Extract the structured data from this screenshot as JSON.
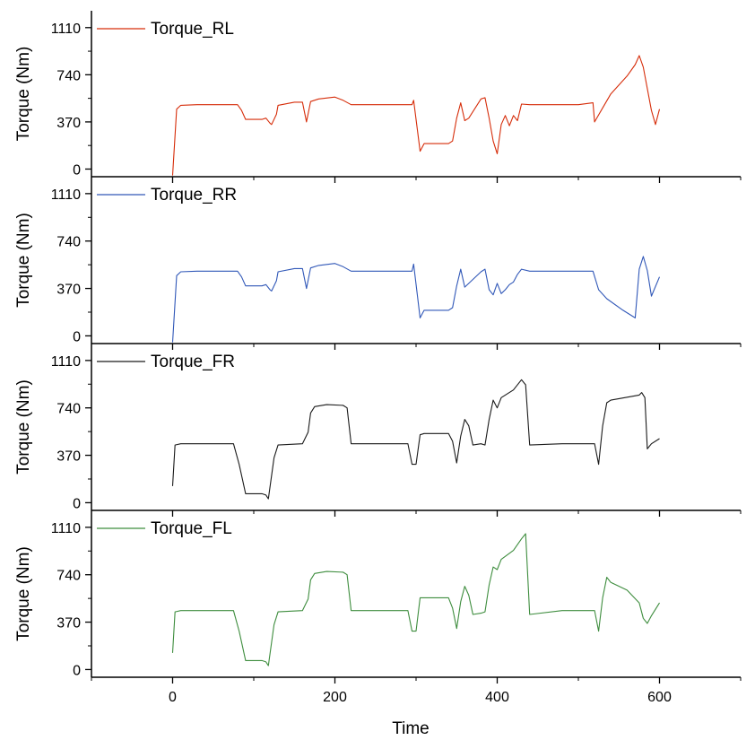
{
  "chart_data": {
    "type": "line",
    "layout": "stacked-panels-shared-x",
    "xlabel": "Time",
    "xlim": [
      -100,
      700
    ],
    "xticks": [
      0,
      200,
      400,
      600
    ],
    "xtick_labels": [
      "0",
      "200",
      "400",
      "600"
    ],
    "grid": false,
    "legend_position": "top-left",
    "panels": [
      {
        "ylabel": "Torque (Nm)",
        "ylim": [
          -60,
          1200
        ],
        "yticks": [
          0,
          370,
          740,
          1110
        ],
        "ytick_labels": [
          "0",
          "370",
          "740",
          "1110"
        ],
        "series": [
          {
            "name": "Torque_RL",
            "color": "#d62d0a",
            "x": [
              0,
              5,
              10,
              30,
              50,
              70,
              80,
              85,
              90,
              110,
              115,
              120,
              122,
              128,
              130,
              150,
              160,
              165,
              170,
              180,
              200,
              210,
              220,
              250,
              295,
              297,
              305,
              310,
              340,
              345,
              350,
              355,
              360,
              365,
              380,
              385,
              390,
              395,
              400,
              405,
              410,
              415,
              420,
              425,
              430,
              440,
              500,
              518,
              520,
              530,
              540,
              560,
              570,
              575,
              580,
              590,
              595,
              600
            ],
            "y": [
              -50,
              470,
              500,
              505,
              505,
              505,
              505,
              460,
              390,
              390,
              400,
              360,
              350,
              430,
              500,
              525,
              525,
              370,
              530,
              550,
              565,
              540,
              505,
              505,
              505,
              540,
              140,
              200,
              200,
              220,
              400,
              520,
              380,
              400,
              550,
              560,
              400,
              220,
              120,
              350,
              420,
              340,
              420,
              380,
              510,
              505,
              505,
              520,
              370,
              480,
              590,
              730,
              820,
              890,
              800,
              460,
              350,
              470
            ]
          }
        ]
      },
      {
        "ylabel": "Torque (Nm)",
        "ylim": [
          -60,
          1200
        ],
        "yticks": [
          0,
          370,
          740,
          1110
        ],
        "ytick_labels": [
          "0",
          "370",
          "740",
          "1110"
        ],
        "series": [
          {
            "name": "Torque_RR",
            "color": "#3158b8",
            "x": [
              0,
              5,
              10,
              30,
              50,
              70,
              80,
              85,
              90,
              110,
              115,
              120,
              122,
              128,
              130,
              150,
              160,
              165,
              170,
              180,
              200,
              210,
              220,
              250,
              295,
              297,
              305,
              310,
              340,
              345,
              350,
              355,
              360,
              365,
              380,
              385,
              390,
              395,
              400,
              405,
              410,
              415,
              420,
              425,
              430,
              440,
              500,
              518,
              525,
              535,
              555,
              570,
              575,
              580,
              585,
              590,
              600
            ],
            "y": [
              -50,
              470,
              500,
              505,
              505,
              505,
              505,
              460,
              390,
              390,
              400,
              360,
              350,
              430,
              500,
              525,
              525,
              370,
              530,
              550,
              565,
              540,
              505,
              505,
              505,
              560,
              140,
              200,
              200,
              220,
              390,
              520,
              380,
              410,
              500,
              520,
              360,
              320,
              410,
              330,
              360,
              400,
              420,
              480,
              520,
              505,
              505,
              505,
              360,
              290,
              200,
              140,
              520,
              620,
              510,
              310,
              460
            ]
          }
        ]
      },
      {
        "ylabel": "Torque (Nm)",
        "ylim": [
          -60,
          1200
        ],
        "yticks": [
          0,
          370,
          740,
          1110
        ],
        "ytick_labels": [
          "0",
          "370",
          "740",
          "1110"
        ],
        "series": [
          {
            "name": "Torque_FR",
            "color": "#1a1a1a",
            "x": [
              0,
              3,
              10,
              40,
              75,
              82,
              90,
              110,
              115,
              118,
              125,
              130,
              160,
              167,
              170,
              175,
              190,
              210,
              215,
              220,
              230,
              250,
              290,
              295,
              300,
              305,
              310,
              340,
              345,
              350,
              355,
              360,
              365,
              370,
              380,
              385,
              390,
              395,
              400,
              405,
              420,
              430,
              435,
              440,
              480,
              520,
              525,
              530,
              535,
              540,
              575,
              578,
              582,
              585,
              590,
              600
            ],
            "y": [
              130,
              450,
              460,
              460,
              460,
              300,
              70,
              70,
              60,
              30,
              350,
              450,
              460,
              550,
              700,
              750,
              765,
              760,
              740,
              460,
              460,
              460,
              460,
              300,
              300,
              530,
              540,
              540,
              480,
              310,
              520,
              650,
              600,
              450,
              460,
              450,
              650,
              800,
              740,
              820,
              880,
              960,
              920,
              450,
              460,
              460,
              300,
              600,
              780,
              800,
              840,
              860,
              820,
              420,
              460,
              500
            ]
          }
        ]
      },
      {
        "ylabel": "Torque (Nm)",
        "ylim": [
          -60,
          1200
        ],
        "yticks": [
          0,
          370,
          740,
          1110
        ],
        "ytick_labels": [
          "0",
          "370",
          "740",
          "1110"
        ],
        "series": [
          {
            "name": "Torque_FL",
            "color": "#3e8d3e",
            "x": [
              0,
              3,
              10,
              40,
              75,
              82,
              90,
              110,
              115,
              118,
              125,
              130,
              160,
              167,
              170,
              175,
              190,
              210,
              215,
              220,
              230,
              250,
              290,
              295,
              300,
              305,
              310,
              340,
              345,
              350,
              355,
              360,
              365,
              370,
              380,
              385,
              390,
              395,
              400,
              405,
              420,
              430,
              435,
              440,
              480,
              520,
              525,
              530,
              535,
              540,
              560,
              575,
              580,
              585,
              590,
              600
            ],
            "y": [
              130,
              450,
              460,
              460,
              460,
              300,
              70,
              70,
              60,
              30,
              350,
              450,
              460,
              550,
              700,
              750,
              765,
              760,
              740,
              460,
              460,
              460,
              460,
              300,
              300,
              560,
              560,
              560,
              480,
              320,
              530,
              650,
              580,
              430,
              440,
              450,
              660,
              800,
              780,
              860,
              930,
              1020,
              1060,
              430,
              460,
              460,
              300,
              560,
              720,
              680,
              620,
              520,
              400,
              360,
              420,
              520
            ]
          }
        ]
      }
    ]
  }
}
